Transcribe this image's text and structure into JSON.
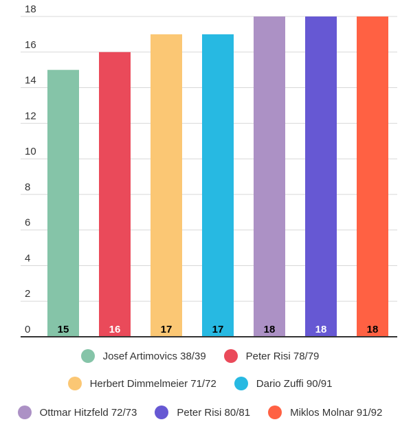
{
  "chart_data": {
    "type": "bar",
    "categories": [
      "Josef Artimovics 38/39",
      "Peter Risi 78/79",
      "Herbert Dimmelmeier 71/72",
      "Dario Zuffi 90/91",
      "Ottmar Hitzfeld 72/73",
      "Peter Risi 80/81",
      "Miklos Molnar 91/92"
    ],
    "values": [
      15,
      16,
      17,
      17,
      18,
      18,
      18
    ],
    "data_labels": [
      "15",
      "16",
      "17",
      "17",
      "18",
      "18",
      "18"
    ],
    "colors": [
      "#85c4a8",
      "#ea4a5a",
      "#fbc774",
      "#27b9e2",
      "#ac91c5",
      "#6658d3",
      "#ff6143"
    ],
    "label_colors": [
      "#000000",
      "#ffffff",
      "#000000",
      "#000000",
      "#000000",
      "#ffffff",
      "#000000"
    ],
    "ylim": [
      0,
      18
    ],
    "yticks": [
      "0",
      "2",
      "4",
      "6",
      "8",
      "10",
      "12",
      "14",
      "16",
      "18"
    ],
    "grid": true,
    "legend_position": "bottom",
    "title": "",
    "xlabel": "",
    "ylabel": ""
  }
}
